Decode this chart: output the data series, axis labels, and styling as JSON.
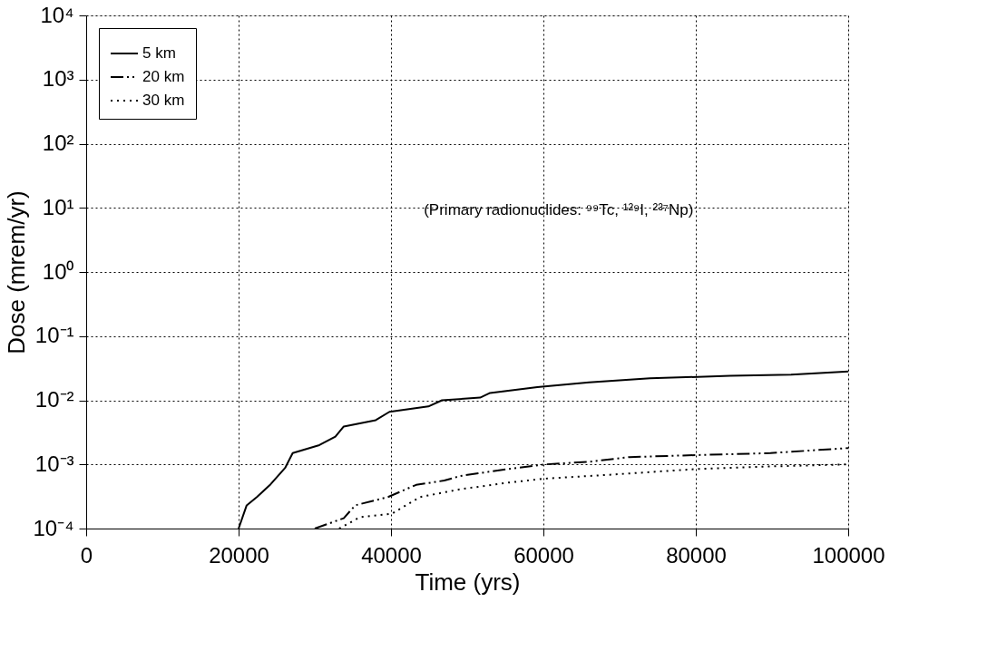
{
  "chart_data": {
    "type": "line",
    "xlabel": "Time (yrs)",
    "ylabel": "Dose (mrem/yr)",
    "log": "y",
    "grid": true,
    "legend": "top left",
    "marker": "none",
    "xlim": [
      0,
      100000
    ],
    "xticks": [
      0,
      20000,
      40000,
      60000,
      80000,
      100000
    ],
    "ylim": [
      0.0001,
      10000
    ],
    "yticks": [
      {
        "value": 0.0001,
        "label": "10⁻⁴"
      },
      {
        "value": 0.001,
        "label": "10⁻³"
      },
      {
        "value": 0.01,
        "label": "10⁻²"
      },
      {
        "value": 0.1,
        "label": "10⁻¹"
      },
      {
        "value": 1,
        "label": "10⁰"
      },
      {
        "value": 10,
        "label": "10¹"
      },
      {
        "value": 100,
        "label": "10²"
      },
      {
        "value": 1000,
        "label": "10³"
      },
      {
        "value": 10000,
        "label": "10⁴"
      }
    ],
    "annotations": [
      "(Primary radionuclides: ⁹⁹Tc, ¹²⁹I, ²³⁷Np)"
    ],
    "series": [
      {
        "name": "5 km",
        "color": "#000000",
        "line_style": "solid",
        "x": [
          20000,
          21060,
          22400,
          24200,
          26100,
          27100,
          30600,
          32700,
          33800,
          38000,
          39800,
          44900,
          46700,
          51700,
          53000,
          59200,
          66000,
          74000,
          84500,
          92500,
          100000
        ],
        "values": [
          0.0001,
          0.00023,
          0.00031,
          0.00049,
          0.00088,
          0.0015,
          0.002,
          0.0027,
          0.0039,
          0.0049,
          0.0066,
          0.008,
          0.01,
          0.011,
          0.013,
          0.016,
          0.019,
          0.022,
          0.024,
          0.025,
          0.028
        ]
      },
      {
        "name": "20 km",
        "color": "#000000",
        "line_style": "dashed",
        "x": [
          30000,
          33800,
          35300,
          39600,
          43300,
          47000,
          49100,
          55400,
          60200,
          66000,
          71300,
          80300,
          89800,
          100000
        ],
        "values": [
          0.0001,
          0.000145,
          0.00023,
          0.00031,
          0.00048,
          0.00056,
          0.00066,
          0.00085,
          0.001,
          0.0011,
          0.0013,
          0.0014,
          0.0015,
          0.0018
        ]
      },
      {
        "name": "30 km",
        "color": "#000000",
        "line_style": "dotted",
        "x": [
          33200,
          35900,
          40100,
          43800,
          49100,
          55400,
          60200,
          68700,
          80300,
          89800,
          100000
        ],
        "values": [
          0.0001,
          0.00015,
          0.00017,
          0.00031,
          0.00041,
          0.00052,
          0.0006,
          0.00069,
          0.00085,
          0.00093,
          0.001
        ]
      }
    ]
  }
}
